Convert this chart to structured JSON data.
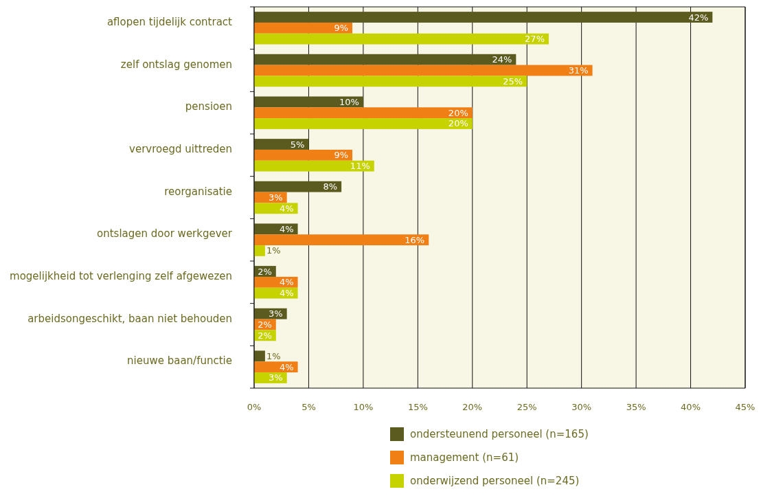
{
  "chart_data": {
    "type": "bar",
    "orientation": "horizontal",
    "categories": [
      "aflopen tijdelijk contract",
      "zelf ontslag genomen",
      "pensioen",
      "vervroegd uittreden",
      "reorganisatie",
      "ontslagen door werkgever",
      "mogelijkheid tot verlenging zelf afgewezen",
      "arbeidsongeschikt, baan niet behouden",
      "nieuwe baan/functie"
    ],
    "series": [
      {
        "name": "ondersteunend personeel (n=165)",
        "color": "#5b5a1f",
        "values": [
          42,
          24,
          10,
          5,
          8,
          4,
          2,
          3,
          1
        ],
        "value_labels": [
          "42%",
          "24%",
          "10%",
          "5%",
          "8%",
          "4%",
          "2%",
          "3%",
          "1%"
        ]
      },
      {
        "name": "management (n=61)",
        "color": "#f07f16",
        "values": [
          9,
          31,
          20,
          9,
          3,
          16,
          4,
          2,
          4
        ],
        "value_labels": [
          "9%",
          "31%",
          "20%",
          "9%",
          "3%",
          "16%",
          "4%",
          "2%",
          "4%"
        ]
      },
      {
        "name": "onderwijzend personeel (n=245)",
        "color": "#c7d300",
        "values": [
          27,
          25,
          20,
          11,
          4,
          1,
          4,
          2,
          3
        ],
        "value_labels": [
          "27%",
          "25%",
          "20%",
          "11%",
          "4%",
          "1%",
          "4%",
          "2%",
          "3%"
        ]
      }
    ],
    "xlim": [
      0,
      45
    ],
    "xticks": [
      {
        "value": 0,
        "label": "0%"
      },
      {
        "value": 5,
        "label": "5%"
      },
      {
        "value": 10,
        "label": "10%"
      },
      {
        "value": 15,
        "label": "15%"
      },
      {
        "value": 20,
        "label": "20%"
      },
      {
        "value": 25,
        "label": "25%"
      },
      {
        "value": 30,
        "label": "30%"
      },
      {
        "value": 35,
        "label": "35%"
      },
      {
        "value": 40,
        "label": "40%"
      },
      {
        "value": 45,
        "label": "45%"
      }
    ],
    "grid": "x",
    "legend": "bottom"
  }
}
